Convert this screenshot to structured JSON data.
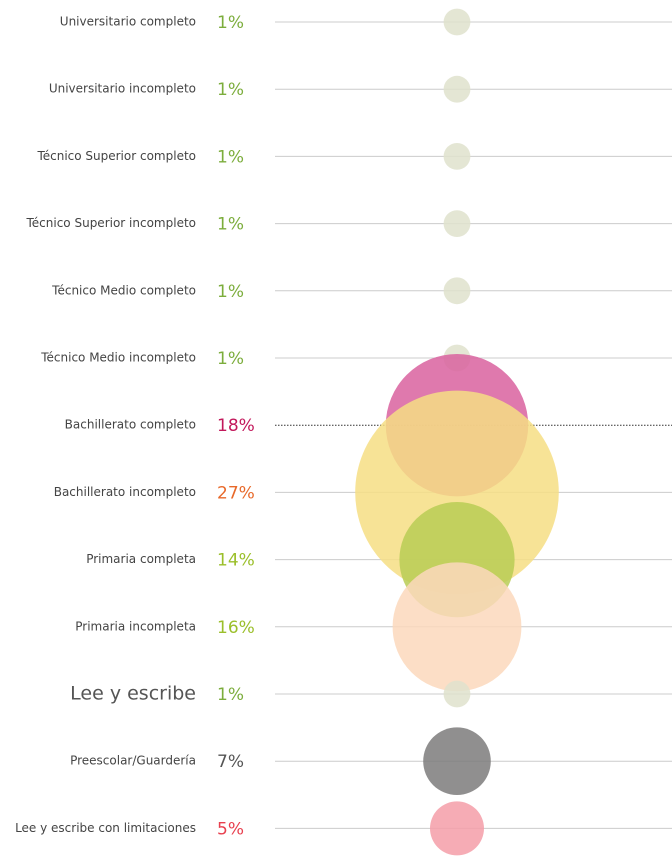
{
  "chart_data": {
    "type": "bubble",
    "categories": [
      "Universitario completo",
      "Universitario incompleto",
      "Técnico Superior completo",
      "Técnico Superior incompleto",
      "Técnico Medio completo",
      "Técnico Medio incompleto",
      "Bachillerato completo",
      "Bachillerato incompleto",
      "Primaria completa",
      "Primaria incompleta",
      "Lee y escribe",
      "Preescolar/Guardería",
      "Lee y escribe con limitaciones"
    ],
    "values": [
      1,
      1,
      1,
      1,
      1,
      1,
      18,
      27,
      14,
      16,
      1,
      7,
      5
    ],
    "value_labels": [
      "1%",
      "1%",
      "1%",
      "1%",
      "1%",
      "1%",
      "18%",
      "27%",
      "14%",
      "16%",
      "1%",
      "7%",
      "5%"
    ],
    "colors": [
      "#dfe2cc",
      "#dfe2cc",
      "#dfe2cc",
      "#dfe2cc",
      "#dfe2cc",
      "#dfe2cc",
      "#d9619f",
      "#f6de84",
      "#b8cc55",
      "#fcd8bc",
      "#dfe2cc",
      "#7d7b7b",
      "#f49ea8"
    ],
    "label_colors": [
      "#7cad3c",
      "#7cad3c",
      "#7cad3c",
      "#7cad3c",
      "#7cad3c",
      "#7cad3c",
      "#c2185b",
      "#e8692a",
      "#9bbf2a",
      "#9bbf2a",
      "#7cad3c",
      "#555555",
      "#e8404f"
    ]
  }
}
